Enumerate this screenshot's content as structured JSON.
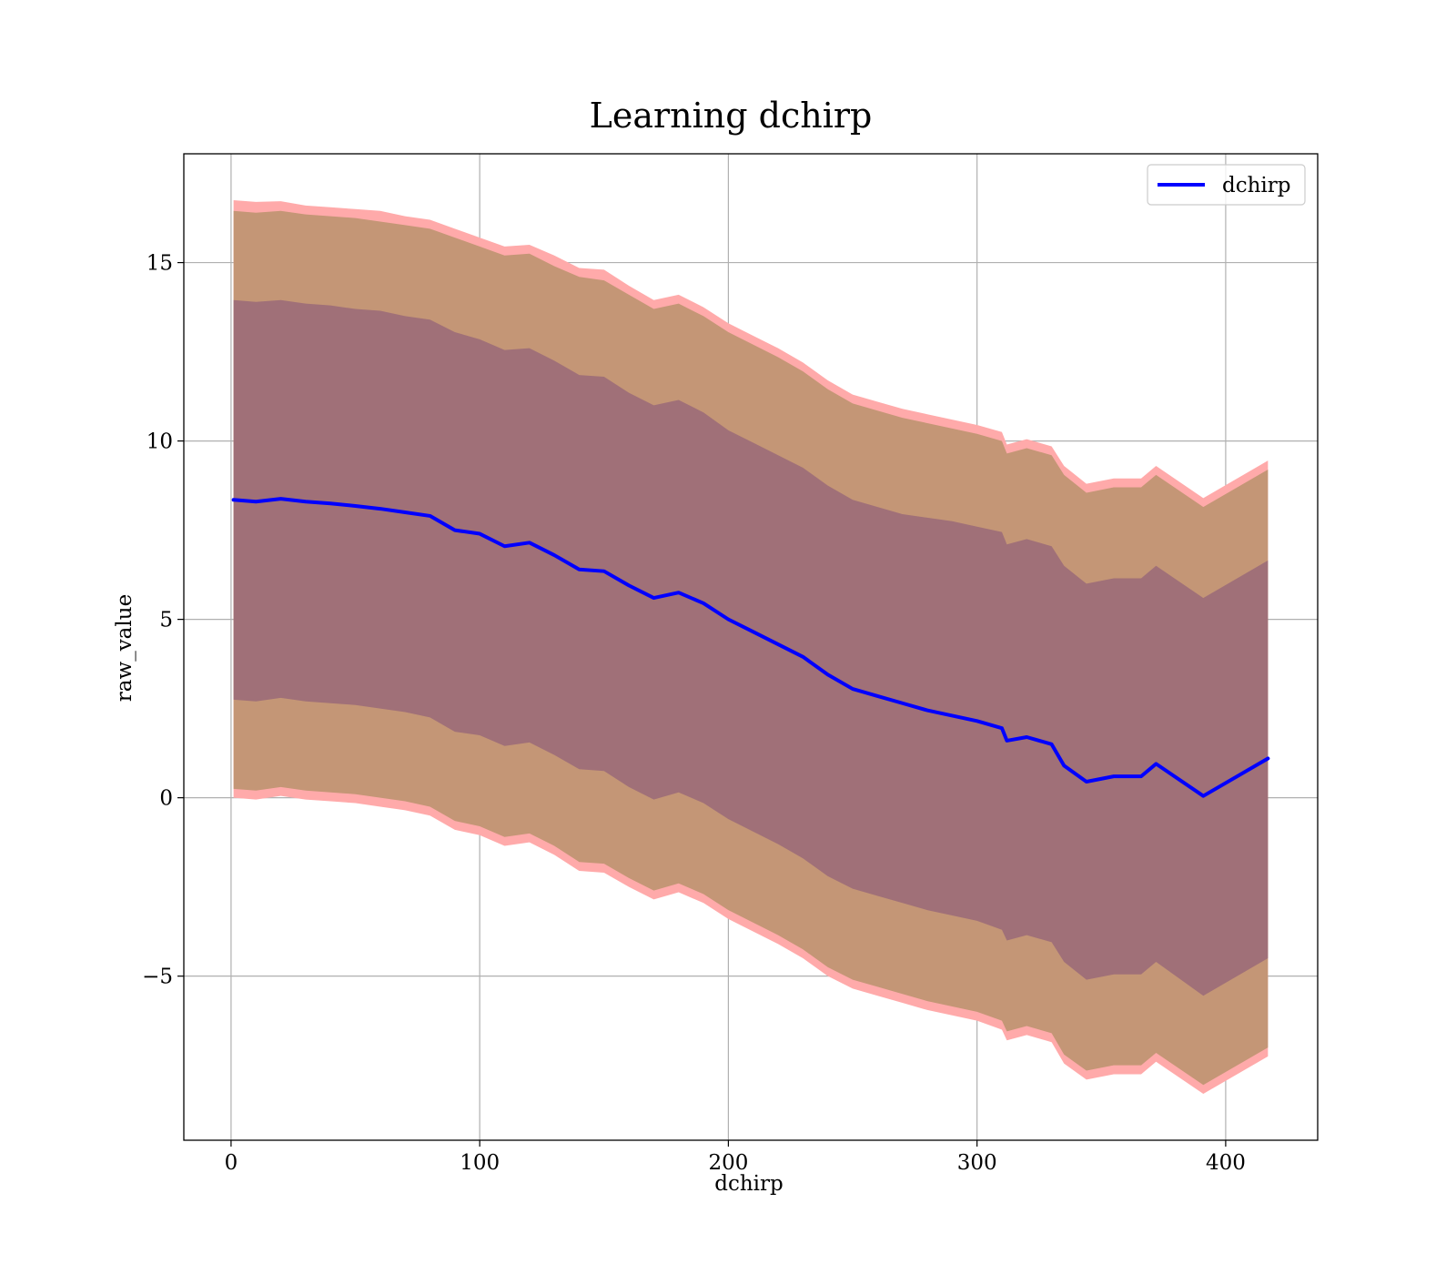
{
  "chart_data": {
    "type": "line",
    "title": "Learning dchirp",
    "xlabel": "dchirp",
    "ylabel": "raw_value",
    "xlim": [
      -19,
      437
    ],
    "ylim": [
      -9.6,
      18.05
    ],
    "xticks": [
      0,
      100,
      200,
      300,
      400
    ],
    "yticks": [
      15,
      10,
      5,
      0,
      -5
    ],
    "xtick_labels": [
      "0",
      "100",
      "200",
      "300",
      "400"
    ],
    "ytick_labels": [
      "15",
      "10",
      "5",
      "0",
      "−5"
    ],
    "grid": true,
    "legend": {
      "placement": "top-right",
      "entries": [
        "dchirp"
      ]
    },
    "x": [
      1,
      10,
      20,
      30,
      40,
      50,
      60,
      70,
      80,
      90,
      100,
      110,
      120,
      130,
      140,
      150,
      160,
      170,
      180,
      190,
      200,
      210,
      220,
      230,
      240,
      250,
      260,
      270,
      280,
      290,
      300,
      310,
      312,
      320,
      330,
      335,
      344,
      355,
      366,
      372,
      391,
      417
    ],
    "series": [
      {
        "name": "dchirp",
        "color": "#0000ff",
        "values": [
          8.35,
          8.3,
          8.38,
          8.3,
          8.25,
          8.18,
          8.1,
          8.0,
          7.9,
          7.5,
          7.4,
          7.05,
          7.15,
          6.8,
          6.4,
          6.35,
          5.95,
          5.6,
          5.75,
          5.45,
          5.0,
          4.65,
          4.3,
          3.95,
          3.45,
          3.05,
          2.85,
          2.65,
          2.45,
          2.3,
          2.15,
          1.95,
          1.6,
          1.7,
          1.5,
          0.9,
          0.45,
          0.6,
          0.6,
          0.95,
          0.05,
          1.1
        ]
      }
    ],
    "bands": [
      {
        "kind": "outer",
        "color": "#ffaaaa",
        "upper": [
          16.75,
          16.7,
          16.72,
          16.6,
          16.55,
          16.5,
          16.45,
          16.3,
          16.2,
          15.95,
          15.7,
          15.45,
          15.5,
          15.2,
          14.85,
          14.8,
          14.35,
          13.95,
          14.1,
          13.75,
          13.3,
          12.95,
          12.6,
          12.2,
          11.7,
          11.3,
          11.1,
          10.9,
          10.75,
          10.6,
          10.45,
          10.25,
          9.9,
          10.05,
          9.85,
          9.3,
          8.8,
          8.95,
          8.95,
          9.3,
          8.4,
          9.45
        ],
        "lower": [
          0.0,
          -0.05,
          0.05,
          -0.05,
          -0.1,
          -0.15,
          -0.25,
          -0.35,
          -0.5,
          -0.9,
          -1.05,
          -1.35,
          -1.25,
          -1.6,
          -2.05,
          -2.1,
          -2.5,
          -2.85,
          -2.65,
          -2.95,
          -3.4,
          -3.75,
          -4.1,
          -4.5,
          -5.0,
          -5.35,
          -5.55,
          -5.75,
          -5.95,
          -6.1,
          -6.25,
          -6.5,
          -6.8,
          -6.65,
          -6.85,
          -7.45,
          -7.9,
          -7.75,
          -7.75,
          -7.4,
          -8.3,
          -7.25
        ]
      },
      {
        "kind": "middle",
        "color": "#c49676",
        "upper": [
          16.45,
          16.4,
          16.45,
          16.35,
          16.3,
          16.25,
          16.15,
          16.05,
          15.95,
          15.7,
          15.45,
          15.2,
          15.25,
          14.9,
          14.6,
          14.5,
          14.1,
          13.7,
          13.85,
          13.5,
          13.05,
          12.7,
          12.35,
          11.95,
          11.45,
          11.05,
          10.85,
          10.65,
          10.5,
          10.35,
          10.2,
          10.0,
          9.65,
          9.8,
          9.6,
          9.05,
          8.55,
          8.7,
          8.7,
          9.05,
          8.15,
          9.2
        ],
        "lower": [
          0.25,
          0.2,
          0.3,
          0.2,
          0.15,
          0.1,
          0.0,
          -0.1,
          -0.25,
          -0.65,
          -0.8,
          -1.1,
          -1.0,
          -1.35,
          -1.8,
          -1.85,
          -2.25,
          -2.6,
          -2.4,
          -2.7,
          -3.15,
          -3.5,
          -3.85,
          -4.25,
          -4.75,
          -5.1,
          -5.3,
          -5.5,
          -5.7,
          -5.85,
          -6.0,
          -6.25,
          -6.55,
          -6.4,
          -6.6,
          -7.2,
          -7.65,
          -7.5,
          -7.5,
          -7.15,
          -8.05,
          -7.0
        ]
      },
      {
        "kind": "inner",
        "color": "#a07078",
        "upper": [
          13.95,
          13.9,
          13.95,
          13.85,
          13.8,
          13.7,
          13.65,
          13.5,
          13.4,
          13.05,
          12.85,
          12.55,
          12.6,
          12.25,
          11.85,
          11.8,
          11.35,
          11.0,
          11.15,
          10.8,
          10.3,
          9.95,
          9.6,
          9.25,
          8.75,
          8.35,
          8.15,
          7.95,
          7.85,
          7.75,
          7.6,
          7.45,
          7.1,
          7.25,
          7.05,
          6.5,
          6.0,
          6.15,
          6.15,
          6.5,
          5.6,
          6.65
        ],
        "lower": [
          2.75,
          2.7,
          2.8,
          2.7,
          2.65,
          2.6,
          2.5,
          2.4,
          2.25,
          1.85,
          1.75,
          1.45,
          1.55,
          1.2,
          0.8,
          0.75,
          0.3,
          -0.05,
          0.15,
          -0.15,
          -0.6,
          -0.95,
          -1.3,
          -1.7,
          -2.2,
          -2.55,
          -2.75,
          -2.95,
          -3.15,
          -3.3,
          -3.45,
          -3.7,
          -4.0,
          -3.85,
          -4.05,
          -4.6,
          -5.1,
          -4.95,
          -4.95,
          -4.6,
          -5.55,
          -4.5
        ]
      }
    ]
  }
}
